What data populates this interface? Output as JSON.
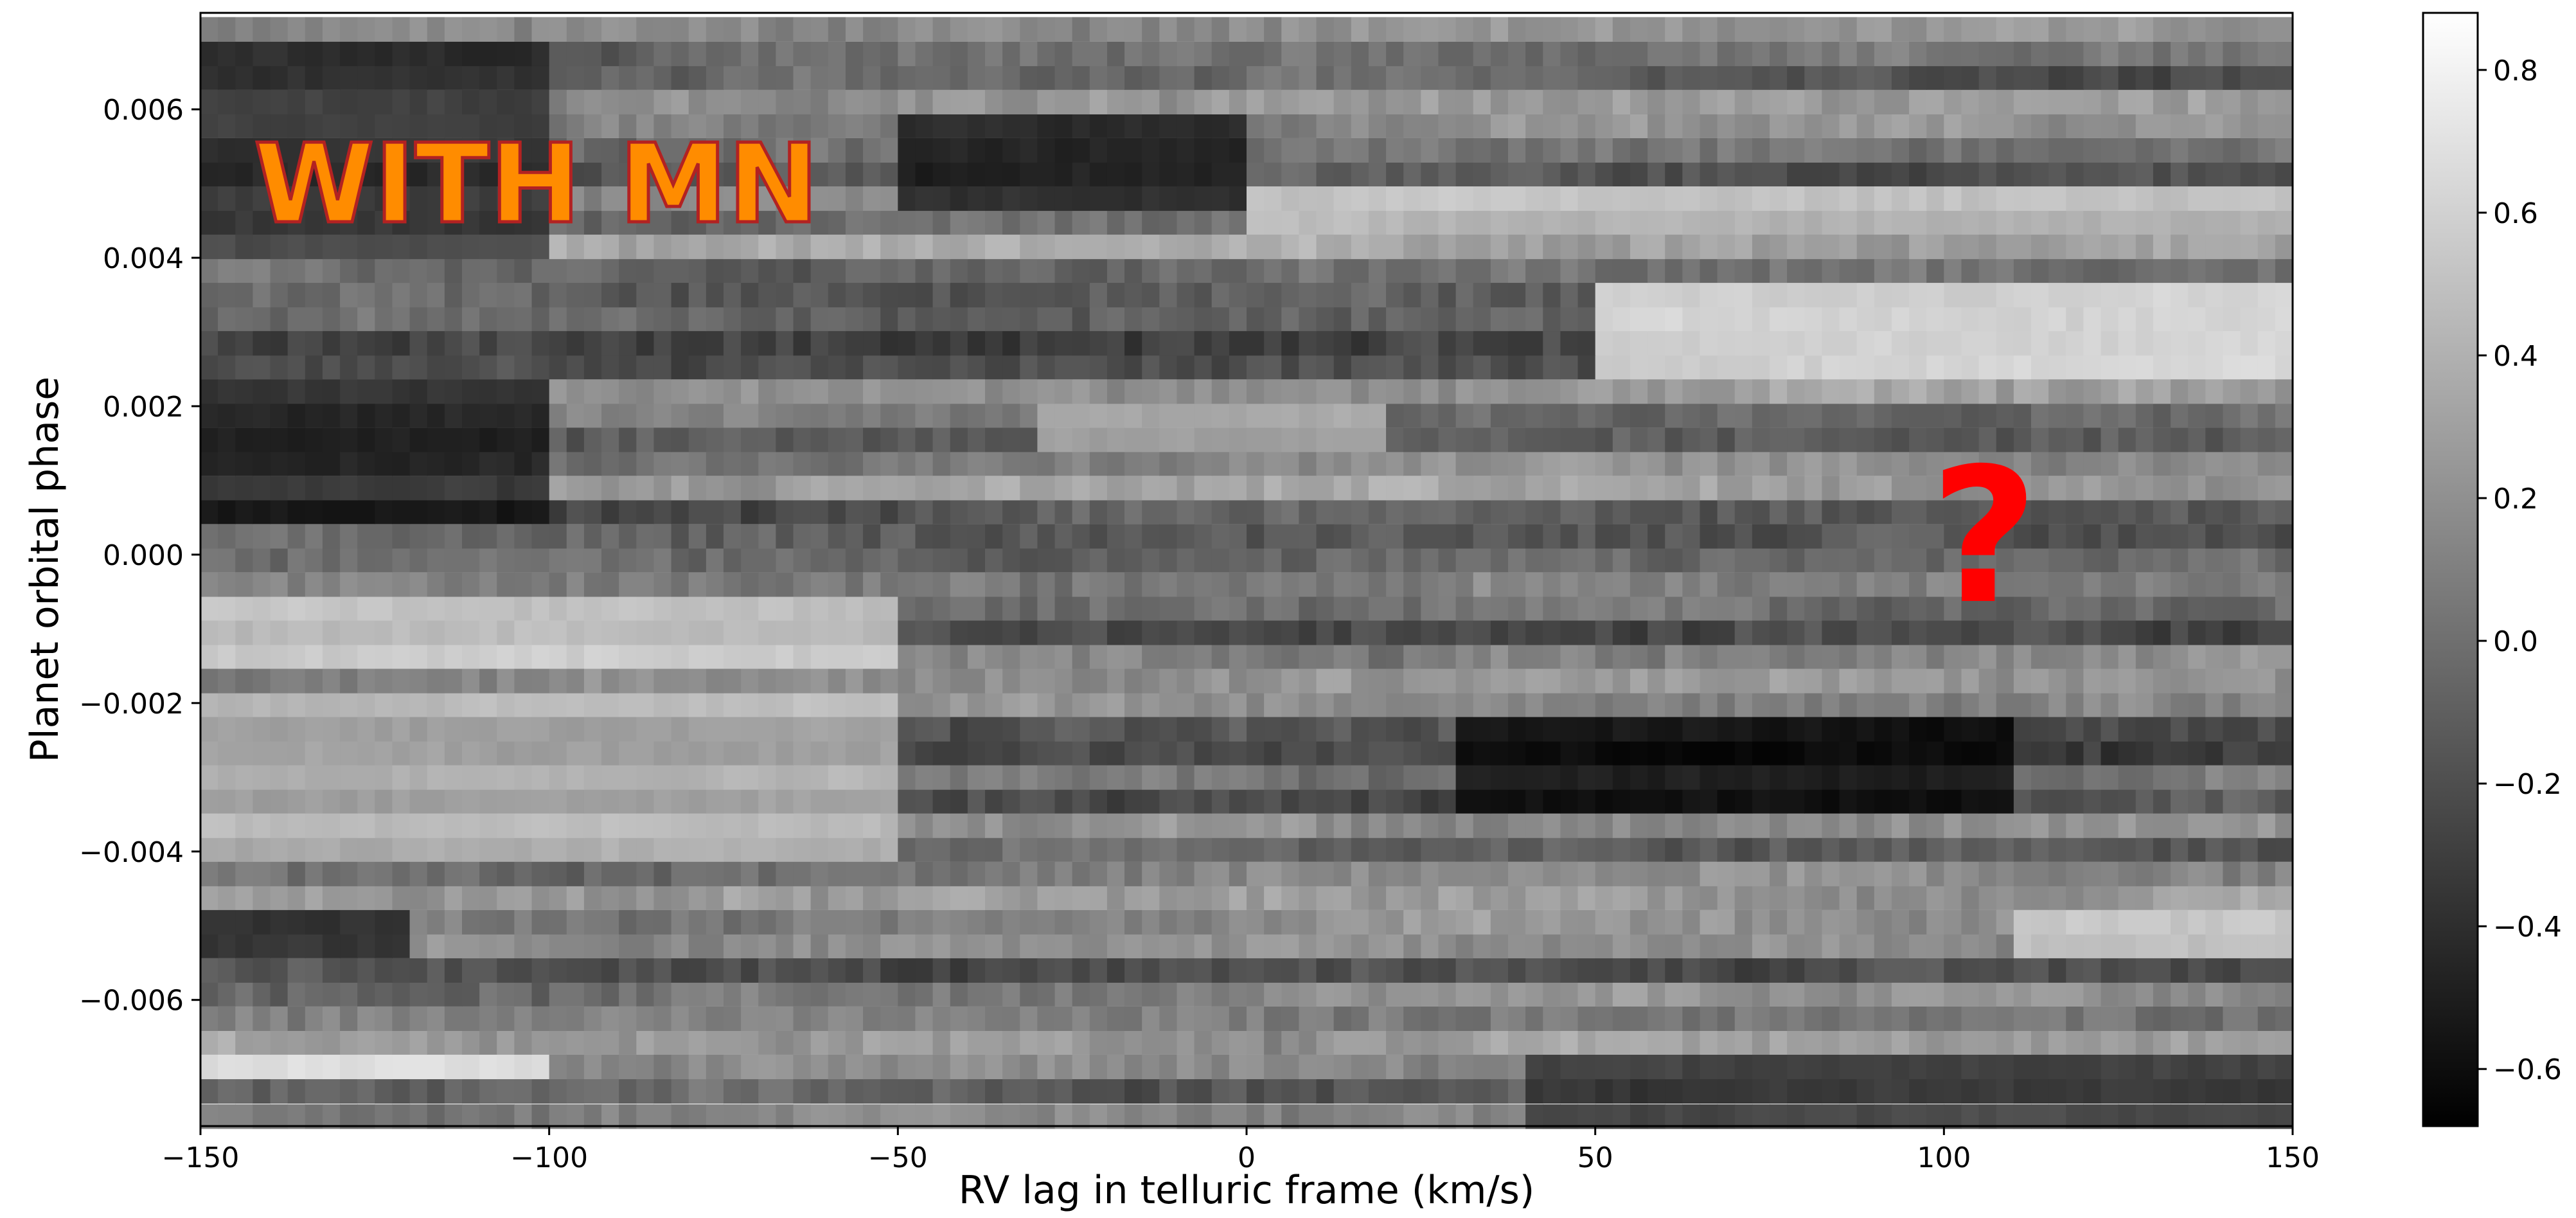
{
  "chart_data": {
    "type": "heatmap",
    "colormap": "gray",
    "xlabel": "RV lag in telluric frame (km/s)",
    "ylabel": "Planet orbital phase",
    "xlim": [
      -150,
      150
    ],
    "ylim": [
      -0.0077,
      0.0073
    ],
    "x_ticks": [
      -150,
      -100,
      -50,
      0,
      50,
      100,
      150
    ],
    "x_tick_labels": [
      "−150",
      "−100",
      "−50",
      "0",
      "50",
      "100",
      "150"
    ],
    "y_ticks": [
      -0.006,
      -0.004,
      -0.002,
      0.0,
      0.002,
      0.004,
      0.006
    ],
    "y_tick_labels": [
      "−0.006",
      "−0.004",
      "−0.002",
      "0.000",
      "0.002",
      "0.004",
      "0.006"
    ],
    "colorbar": {
      "range": [
        -0.68,
        0.88
      ],
      "ticks": [
        -0.6,
        -0.4,
        -0.2,
        0.0,
        0.2,
        0.4,
        0.6,
        0.8
      ],
      "tick_labels": [
        "−0.6",
        "−0.4",
        "−0.2",
        "0.0",
        "0.2",
        "0.4",
        "0.6",
        "0.8"
      ]
    },
    "x_bin_width": 2.5,
    "phase_bins": [
      -0.00757,
      -0.00723,
      -0.0069,
      -0.00657,
      -0.00625,
      -0.00592,
      -0.0056,
      -0.00527,
      -0.00495,
      -0.00462,
      -0.0043,
      -0.00397,
      -0.00365,
      -0.00332,
      -0.003,
      -0.00267,
      -0.00235,
      -0.00202,
      -0.0017,
      -0.00137,
      -0.00105,
      -0.00072,
      -0.0004,
      -7e-05,
      0.00025,
      0.00058,
      0.0009,
      0.00123,
      0.00155,
      0.00188,
      0.0022,
      0.00253,
      0.00285,
      0.00318,
      0.0035,
      0.00383,
      0.00415,
      0.00448,
      0.0048,
      0.00513,
      0.00545,
      0.00578,
      0.0061,
      0.00643,
      0.00675,
      0.00708
    ],
    "regions": [
      {
        "x": [
          -150,
          -100
        ],
        "phase": [
          0.004,
          0.007
        ],
        "value": -0.35
      },
      {
        "x": [
          -50,
          0
        ],
        "phase": [
          0.0048,
          0.0058
        ],
        "value": -0.45
      },
      {
        "x": [
          0,
          150
        ],
        "phase": [
          0.0042,
          0.0048
        ],
        "value": 0.45
      },
      {
        "x": [
          50,
          150
        ],
        "phase": [
          0.0025,
          0.0036
        ],
        "value": 0.65
      },
      {
        "x": [
          -150,
          -100
        ],
        "phase": [
          0.0005,
          0.0022
        ],
        "value": -0.45
      },
      {
        "x": [
          -30,
          20
        ],
        "phase": [
          0.0015,
          0.002
        ],
        "value": 0.35
      },
      {
        "x": [
          -150,
          -50
        ],
        "phase": [
          -0.0015,
          -0.0005
        ],
        "value": 0.5
      },
      {
        "x": [
          -150,
          -50
        ],
        "phase": [
          -0.0042,
          -0.002
        ],
        "value": 0.4
      },
      {
        "x": [
          30,
          110
        ],
        "phase": [
          -0.0035,
          -0.0022
        ],
        "value": -0.5
      },
      {
        "x": [
          -150,
          -120
        ],
        "phase": [
          -0.0055,
          -0.0048
        ],
        "value": -0.45
      },
      {
        "x": [
          -150,
          -100
        ],
        "phase": [
          -0.0072,
          -0.0068
        ],
        "value": 0.6
      },
      {
        "x": [
          110,
          150
        ],
        "phase": [
          -0.0055,
          -0.0048
        ],
        "value": 0.45
      },
      {
        "x": [
          40,
          150
        ],
        "phase": [
          -0.0077,
          -0.0068
        ],
        "value": -0.3
      }
    ],
    "annotations": [
      "WITH MN",
      "?"
    ]
  }
}
